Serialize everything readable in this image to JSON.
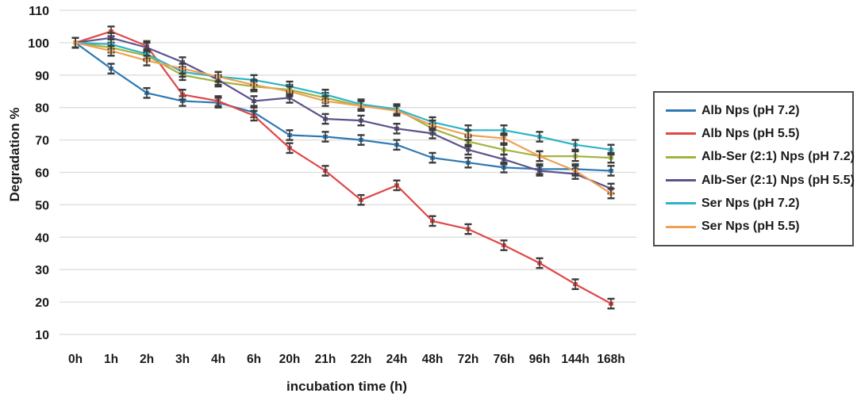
{
  "chart_data": {
    "type": "line",
    "title": "",
    "xlabel": "incubation time (h)",
    "ylabel": "Degradation %",
    "categories": [
      "0h",
      "1h",
      "2h",
      "3h",
      "4h",
      "6h",
      "20h",
      "21h",
      "22h",
      "24h",
      "48h",
      "72h",
      "76h",
      "96h",
      "144h",
      "168h"
    ],
    "ylim": [
      10,
      110
    ],
    "ytick_step": 10,
    "grid": "horizontal",
    "grid_color": "#dcdcdc",
    "legend_position": "right-outside",
    "error_bar": 1.5,
    "error_bar_color": "#3b3b3b",
    "series": [
      {
        "name": "Alb Nps (pH 7.2)",
        "color": "#2e79b2",
        "values": [
          100,
          92,
          84.5,
          82,
          81.5,
          78.5,
          71.5,
          71,
          70,
          68.5,
          64.5,
          63,
          61.5,
          61,
          61,
          60.5
        ]
      },
      {
        "name": "Alb Nps (pH 5.5)",
        "color": "#e04747",
        "values": [
          100,
          103.5,
          99,
          84,
          82,
          77.5,
          67.5,
          60.5,
          51.5,
          56,
          45,
          42.5,
          37.5,
          32,
          25.5,
          19.5
        ]
      },
      {
        "name": "Alb-Ser (2:1) Nps (pH 7.2)",
        "color": "#a4b23e",
        "values": [
          100,
          98.5,
          96,
          90,
          88,
          86.5,
          85.5,
          83,
          80.5,
          79.5,
          73.5,
          69.5,
          67,
          65,
          65,
          64.5
        ]
      },
      {
        "name": "Alb-Ser (2:1) Nps (pH 5.5)",
        "color": "#5c538b",
        "values": [
          100,
          101.5,
          98.5,
          94,
          88.5,
          82,
          83,
          76.5,
          76,
          73.5,
          72,
          67,
          64,
          60.5,
          59.5,
          55
        ]
      },
      {
        "name": "Ser Nps (pH 7.2)",
        "color": "#2cb4c7",
        "values": [
          100,
          99.5,
          96.5,
          91,
          89.5,
          88.5,
          86.5,
          84,
          81,
          79.5,
          75.5,
          73,
          73,
          71,
          68.5,
          67
        ]
      },
      {
        "name": "Ser Nps (pH 5.5)",
        "color": "#f0a055",
        "values": [
          100,
          97.5,
          94.5,
          92,
          89.5,
          87,
          85,
          82,
          80.5,
          79,
          74.5,
          71.5,
          70.5,
          65,
          60.5,
          53.5
        ]
      }
    ]
  }
}
